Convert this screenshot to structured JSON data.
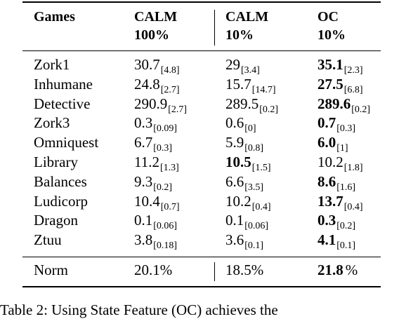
{
  "header": {
    "games": "Games",
    "col1_line1": "CALM",
    "col1_line2": "100%",
    "col2_line1": "CALM",
    "col2_line2": "10%",
    "col3_line1": "OC",
    "col3_line2": "10%"
  },
  "rows": [
    {
      "game": "Zork1",
      "c1": "30.7",
      "c1s": "[4.8]",
      "c2": "29",
      "c2s": "[3.4]",
      "c3": "35.1",
      "c3s": "[2.3]",
      "bold_col": 3
    },
    {
      "game": "Inhumane",
      "c1": "24.8",
      "c1s": "[2.7]",
      "c2": "15.7",
      "c2s": "[14.7]",
      "c3": "27.5",
      "c3s": "[6.8]",
      "bold_col": 3
    },
    {
      "game": "Detective",
      "c1": "290.9",
      "c1s": "[2.7]",
      "c2": "289.5",
      "c2s": "[0.2]",
      "c3": "289.6",
      "c3s": "[0.2]",
      "bold_col": 3
    },
    {
      "game": "Zork3",
      "c1": "0.3",
      "c1s": "[0.09]",
      "c2": "0.6",
      "c2s": "[0]",
      "c3": "0.7",
      "c3s": "[0.3]",
      "bold_col": 3
    },
    {
      "game": "Omniquest",
      "c1": "6.7",
      "c1s": "[0.3]",
      "c2": "5.9",
      "c2s": "[0.8]",
      "c3": "6.0",
      "c3s": "[1]",
      "bold_col": 3
    },
    {
      "game": "Library",
      "c1": "11.2",
      "c1s": "[1.3]",
      "c2": "10.5",
      "c2s": "[1.5]",
      "c3": "10.2",
      "c3s": "[1.8]",
      "bold_col": 2
    },
    {
      "game": "Balances",
      "c1": "9.3",
      "c1s": "[0.2]",
      "c2": "6.6",
      "c2s": "[3.5]",
      "c3": "8.6",
      "c3s": "[1.6]",
      "bold_col": 3
    },
    {
      "game": "Ludicorp",
      "c1": "10.4",
      "c1s": "[0.7]",
      "c2": "10.2",
      "c2s": "[0.4]",
      "c3": "13.7",
      "c3s": "[0.4]",
      "bold_col": 3
    },
    {
      "game": "Dragon",
      "c1": "0.1",
      "c1s": "[0.06]",
      "c2": "0.1",
      "c2s": "[0.06]",
      "c3": "0.3",
      "c3s": "[0.2]",
      "bold_col": 3
    },
    {
      "game": "Ztuu",
      "c1": "3.8",
      "c1s": "[0.18]",
      "c2": "3.6",
      "c2s": "[0.1]",
      "c3": "4.1",
      "c3s": "[0.1]",
      "bold_col": 3
    }
  ],
  "footer": {
    "label": "Norm",
    "c1": "20.1%",
    "c2": "18.5%",
    "c3_value": "21.8",
    "c3_pct": "%"
  },
  "caption": "Table 2: Using State Feature (OC) achieves the"
}
